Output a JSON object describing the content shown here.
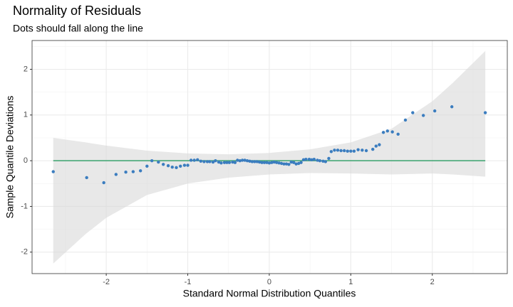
{
  "chart_data": {
    "type": "qq",
    "title": "Normality of Residuals",
    "subtitle": "Dots should fall along the line",
    "x_label": "Standard Normal Distribution Quantiles",
    "y_label": "Sample Quantile Deviations",
    "xlim": [
      -2.91,
      2.92
    ],
    "ylim": [
      -2.47,
      2.63
    ],
    "xticks": [
      -2,
      -1,
      0,
      1,
      2
    ],
    "yticks": [
      -2,
      -1,
      0,
      1,
      2
    ],
    "x_minor_ticks": [
      -2.5,
      -1.5,
      -0.5,
      0.5,
      1.5,
      2.5
    ],
    "y_minor_ticks": [
      -1.5,
      -0.5,
      0.5,
      1.5,
      2.5
    ],
    "grid": true,
    "color": "#3b7dbf",
    "x": [
      -2.65,
      -2.24,
      -2.03,
      -1.88,
      -1.76,
      -1.67,
      -1.58,
      -1.5,
      -1.44,
      -1.36,
      -1.3,
      -1.24,
      -1.19,
      -1.14,
      -1.09,
      -1.04,
      -1.0,
      -0.96,
      -0.92,
      -0.88,
      -0.84,
      -0.8,
      -0.76,
      -0.73,
      -0.69,
      -0.66,
      -0.62,
      -0.59,
      -0.55,
      -0.52,
      -0.49,
      -0.45,
      -0.42,
      -0.39,
      -0.36,
      -0.33,
      -0.3,
      -0.27,
      -0.24,
      -0.21,
      -0.18,
      -0.15,
      -0.12,
      -0.09,
      -0.06,
      -0.03,
      0.0,
      0.03,
      0.06,
      0.09,
      0.12,
      0.15,
      0.18,
      0.21,
      0.24,
      0.27,
      0.3,
      0.33,
      0.36,
      0.39,
      0.42,
      0.45,
      0.49,
      0.52,
      0.55,
      0.59,
      0.62,
      0.66,
      0.69,
      0.73,
      0.76,
      0.8,
      0.84,
      0.88,
      0.92,
      0.96,
      1.0,
      1.04,
      1.09,
      1.14,
      1.19,
      1.27,
      1.31,
      1.35,
      1.4,
      1.45,
      1.51,
      1.58,
      1.67,
      1.76,
      1.89,
      2.03,
      2.24,
      2.65
    ],
    "values": [
      -0.24,
      -0.37,
      -0.48,
      -0.3,
      -0.25,
      -0.24,
      -0.22,
      -0.12,
      0.0,
      -0.03,
      -0.08,
      -0.11,
      -0.14,
      -0.15,
      -0.12,
      -0.1,
      -0.1,
      0.01,
      0.01,
      0.02,
      -0.01,
      -0.02,
      -0.02,
      -0.02,
      -0.03,
      0.0,
      -0.03,
      -0.05,
      -0.04,
      -0.04,
      -0.04,
      -0.03,
      -0.04,
      0.01,
      0.0,
      0.01,
      0.01,
      0.0,
      -0.01,
      -0.02,
      -0.02,
      -0.02,
      -0.03,
      -0.04,
      -0.04,
      -0.04,
      -0.05,
      -0.04,
      -0.03,
      -0.04,
      -0.05,
      -0.06,
      -0.07,
      -0.07,
      -0.08,
      -0.03,
      -0.04,
      -0.07,
      -0.06,
      -0.04,
      0.02,
      0.03,
      0.03,
      0.02,
      0.03,
      0.01,
      0.0,
      -0.01,
      -0.02,
      0.05,
      0.2,
      0.23,
      0.23,
      0.22,
      0.22,
      0.21,
      0.21,
      0.21,
      0.24,
      0.23,
      0.22,
      0.25,
      0.32,
      0.35,
      0.62,
      0.65,
      0.63,
      0.58,
      0.89,
      1.05,
      0.99,
      1.09,
      1.18,
      1.05
    ],
    "reference_line": {
      "x": [
        -2.65,
        2.65
      ],
      "values": [
        0,
        0
      ],
      "color": "#3aa36e"
    },
    "band": {
      "x": [
        -2.65,
        -2.25,
        -2,
        -1.5,
        -1,
        -0.5,
        0,
        0.5,
        1,
        1.5,
        2,
        2.25,
        2.65
      ],
      "upper": [
        0.5,
        0.4,
        0.33,
        0.22,
        0.16,
        0.14,
        0.17,
        0.25,
        0.4,
        0.7,
        1.3,
        1.7,
        2.4
      ],
      "lower": [
        -2.25,
        -1.6,
        -1.25,
        -0.75,
        -0.5,
        -0.37,
        -0.3,
        -0.27,
        -0.28,
        -0.3,
        -0.28,
        -0.3,
        -0.35
      ],
      "color": "#d9d9d9"
    }
  }
}
